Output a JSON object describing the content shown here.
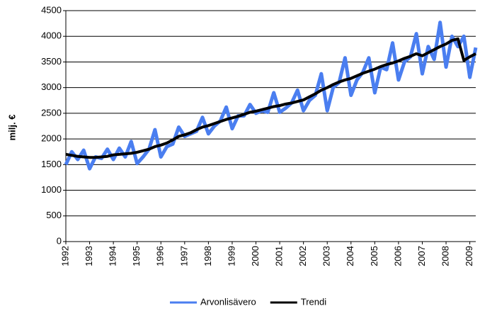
{
  "chart_data": {
    "type": "line",
    "y_label": "milj. €",
    "categories": [
      "1992",
      null,
      null,
      null,
      "1993",
      null,
      null,
      null,
      "1994",
      null,
      null,
      null,
      "1995",
      null,
      null,
      null,
      "1996",
      null,
      null,
      null,
      "1997",
      null,
      null,
      null,
      "1998",
      null,
      null,
      null,
      "1999",
      null,
      null,
      null,
      "2000",
      null,
      null,
      null,
      "2001",
      null,
      null,
      null,
      "2002",
      null,
      null,
      null,
      "2003",
      null,
      null,
      null,
      "2004",
      null,
      null,
      null,
      "2005",
      null,
      null,
      null,
      "2006",
      null,
      null,
      null,
      "2007",
      null,
      null,
      null,
      "2008",
      null,
      null,
      null,
      "2009",
      null
    ],
    "series": [
      {
        "name": "Arvonlisävero",
        "color": "#4a7ef0",
        "width": 5,
        "values": [
          1500,
          1750,
          1600,
          1780,
          1420,
          1650,
          1620,
          1800,
          1600,
          1820,
          1650,
          1950,
          1520,
          1650,
          1800,
          2180,
          1650,
          1850,
          1900,
          2230,
          2050,
          2100,
          2150,
          2420,
          2100,
          2250,
          2350,
          2620,
          2200,
          2450,
          2450,
          2670,
          2500,
          2550,
          2520,
          2900,
          2520,
          2600,
          2700,
          2950,
          2550,
          2750,
          2850,
          3270,
          2550,
          3000,
          3100,
          3580,
          2850,
          3150,
          3300,
          3580,
          2900,
          3400,
          3350,
          3870,
          3150,
          3500,
          3600,
          4050,
          3270,
          3800,
          3550,
          4270,
          3400,
          4000,
          3800,
          4000,
          3200,
          3780
        ]
      },
      {
        "name": "Trendi",
        "color": "#000000",
        "width": 4,
        "values": [
          1700,
          1680,
          1660,
          1650,
          1640,
          1640,
          1650,
          1660,
          1690,
          1700,
          1710,
          1720,
          1740,
          1770,
          1800,
          1850,
          1880,
          1920,
          1980,
          2050,
          2080,
          2120,
          2180,
          2230,
          2260,
          2300,
          2340,
          2380,
          2410,
          2440,
          2480,
          2520,
          2540,
          2570,
          2600,
          2630,
          2650,
          2680,
          2700,
          2730,
          2760,
          2820,
          2880,
          2950,
          3000,
          3060,
          3110,
          3150,
          3180,
          3230,
          3280,
          3320,
          3360,
          3410,
          3450,
          3480,
          3520,
          3570,
          3610,
          3660,
          3620,
          3680,
          3740,
          3800,
          3850,
          3920,
          3950,
          3530,
          3600,
          3660
        ]
      }
    ],
    "ylim": [
      0,
      4500
    ],
    "yticks": [
      0,
      500,
      1000,
      1500,
      2000,
      2500,
      3000,
      3500,
      4000,
      4500
    ],
    "grid": true,
    "legend": "bottom"
  }
}
